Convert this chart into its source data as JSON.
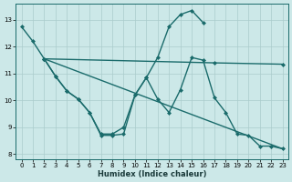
{
  "xlabel": "Humidex (Indice chaleur)",
  "bg_color": "#cce8e8",
  "grid_color": "#aacccc",
  "line_color": "#1a6b6b",
  "xlim": [
    -0.5,
    23.5
  ],
  "ylim": [
    7.8,
    13.6
  ],
  "yticks": [
    8,
    9,
    10,
    11,
    12,
    13
  ],
  "xticks": [
    0,
    1,
    2,
    3,
    4,
    5,
    6,
    7,
    8,
    9,
    10,
    11,
    12,
    13,
    14,
    15,
    16,
    17,
    18,
    19,
    20,
    21,
    22,
    23
  ],
  "line1": {
    "x": [
      0,
      1,
      2,
      3,
      4,
      5,
      6,
      7,
      8,
      9,
      10,
      11,
      12,
      13,
      14,
      15,
      16
    ],
    "y": [
      12.75,
      12.2,
      11.55,
      10.9,
      10.35,
      10.05,
      9.55,
      8.7,
      8.7,
      8.75,
      10.2,
      10.85,
      11.6,
      12.75,
      13.2,
      13.35,
      12.9
    ]
  },
  "line2": {
    "x": [
      2,
      3,
      4,
      5,
      6,
      7,
      8,
      9,
      10,
      11,
      12,
      13,
      14,
      15,
      16,
      17,
      18,
      19,
      20,
      21,
      22,
      23
    ],
    "y": [
      11.55,
      10.9,
      10.35,
      10.05,
      9.55,
      8.75,
      8.75,
      9.0,
      10.2,
      10.85,
      10.05,
      9.55,
      10.4,
      11.6,
      11.5,
      10.1,
      9.55,
      8.75,
      8.7,
      8.3,
      8.3,
      8.2
    ]
  },
  "line3": {
    "x": [
      2,
      17,
      23
    ],
    "y": [
      11.55,
      11.4,
      11.35
    ]
  },
  "line4": {
    "x": [
      2,
      23
    ],
    "y": [
      11.55,
      8.2
    ]
  }
}
